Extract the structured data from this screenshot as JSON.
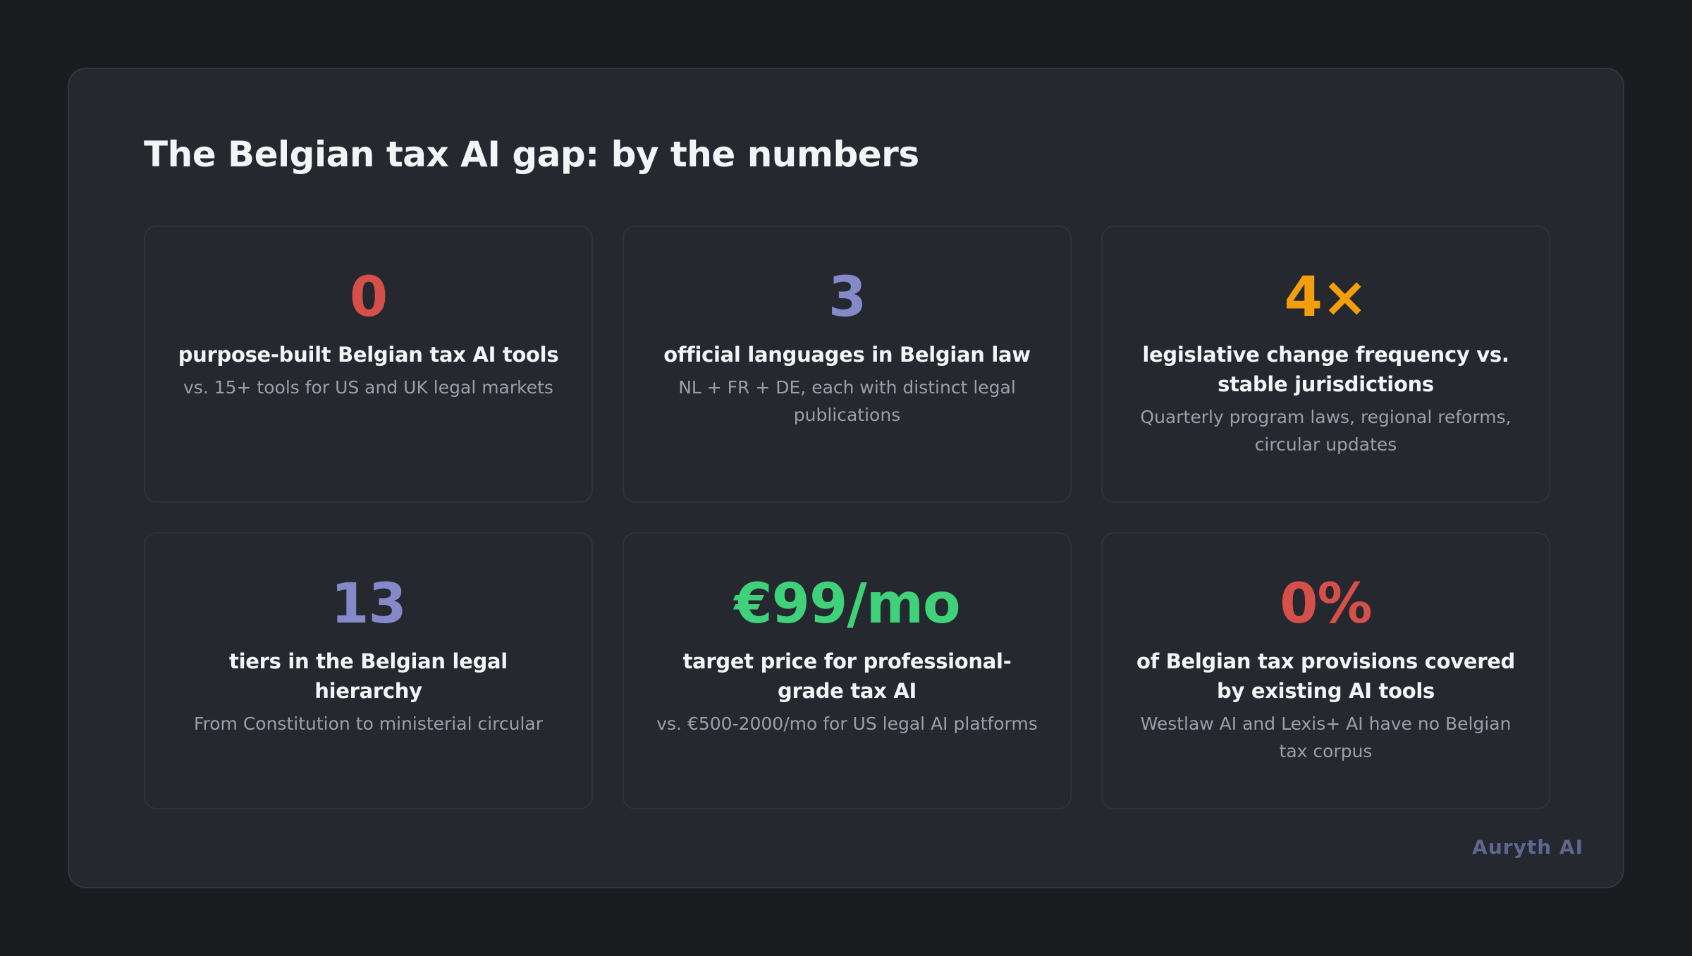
{
  "slide": {
    "title": "The Belgian tax AI gap: by the numbers",
    "brand": "Auryth AI"
  },
  "colors": {
    "background": "#1b1c20",
    "panel": "#25282e",
    "red": "#d64f4a",
    "indigo": "#8589c7",
    "orange": "#f59e0b",
    "green": "#3fd27a",
    "label": "#f3f4f6",
    "sublabel": "#9aa0a9",
    "brand": "#5f6690"
  },
  "stats": [
    {
      "value": "0",
      "color": "#d64f4a",
      "label": "purpose-built Belgian tax AI tools",
      "sub": "vs. 15+ tools for US and UK legal markets"
    },
    {
      "value": "3",
      "color": "#8589c7",
      "label": "official languages in Belgian law",
      "sub": "NL + FR + DE, each with distinct legal publications"
    },
    {
      "value": "4×",
      "color": "#f59e0b",
      "label": "legislative change frequency vs. stable jurisdictions",
      "sub": "Quarterly program laws, regional reforms, circular updates"
    },
    {
      "value": "13",
      "color": "#8589c7",
      "label": "tiers in the Belgian legal hierarchy",
      "sub": "From Constitution to ministerial circular"
    },
    {
      "value": "€99/mo",
      "color": "#3fd27a",
      "label": "target price for professional-grade tax AI",
      "sub": "vs. €500-2000/mo for US legal AI platforms"
    },
    {
      "value": "0%",
      "color": "#d64f4a",
      "label": "of Belgian tax provisions covered by existing AI tools",
      "sub": "Westlaw AI and Lexis+ AI have no Belgian tax corpus"
    }
  ]
}
